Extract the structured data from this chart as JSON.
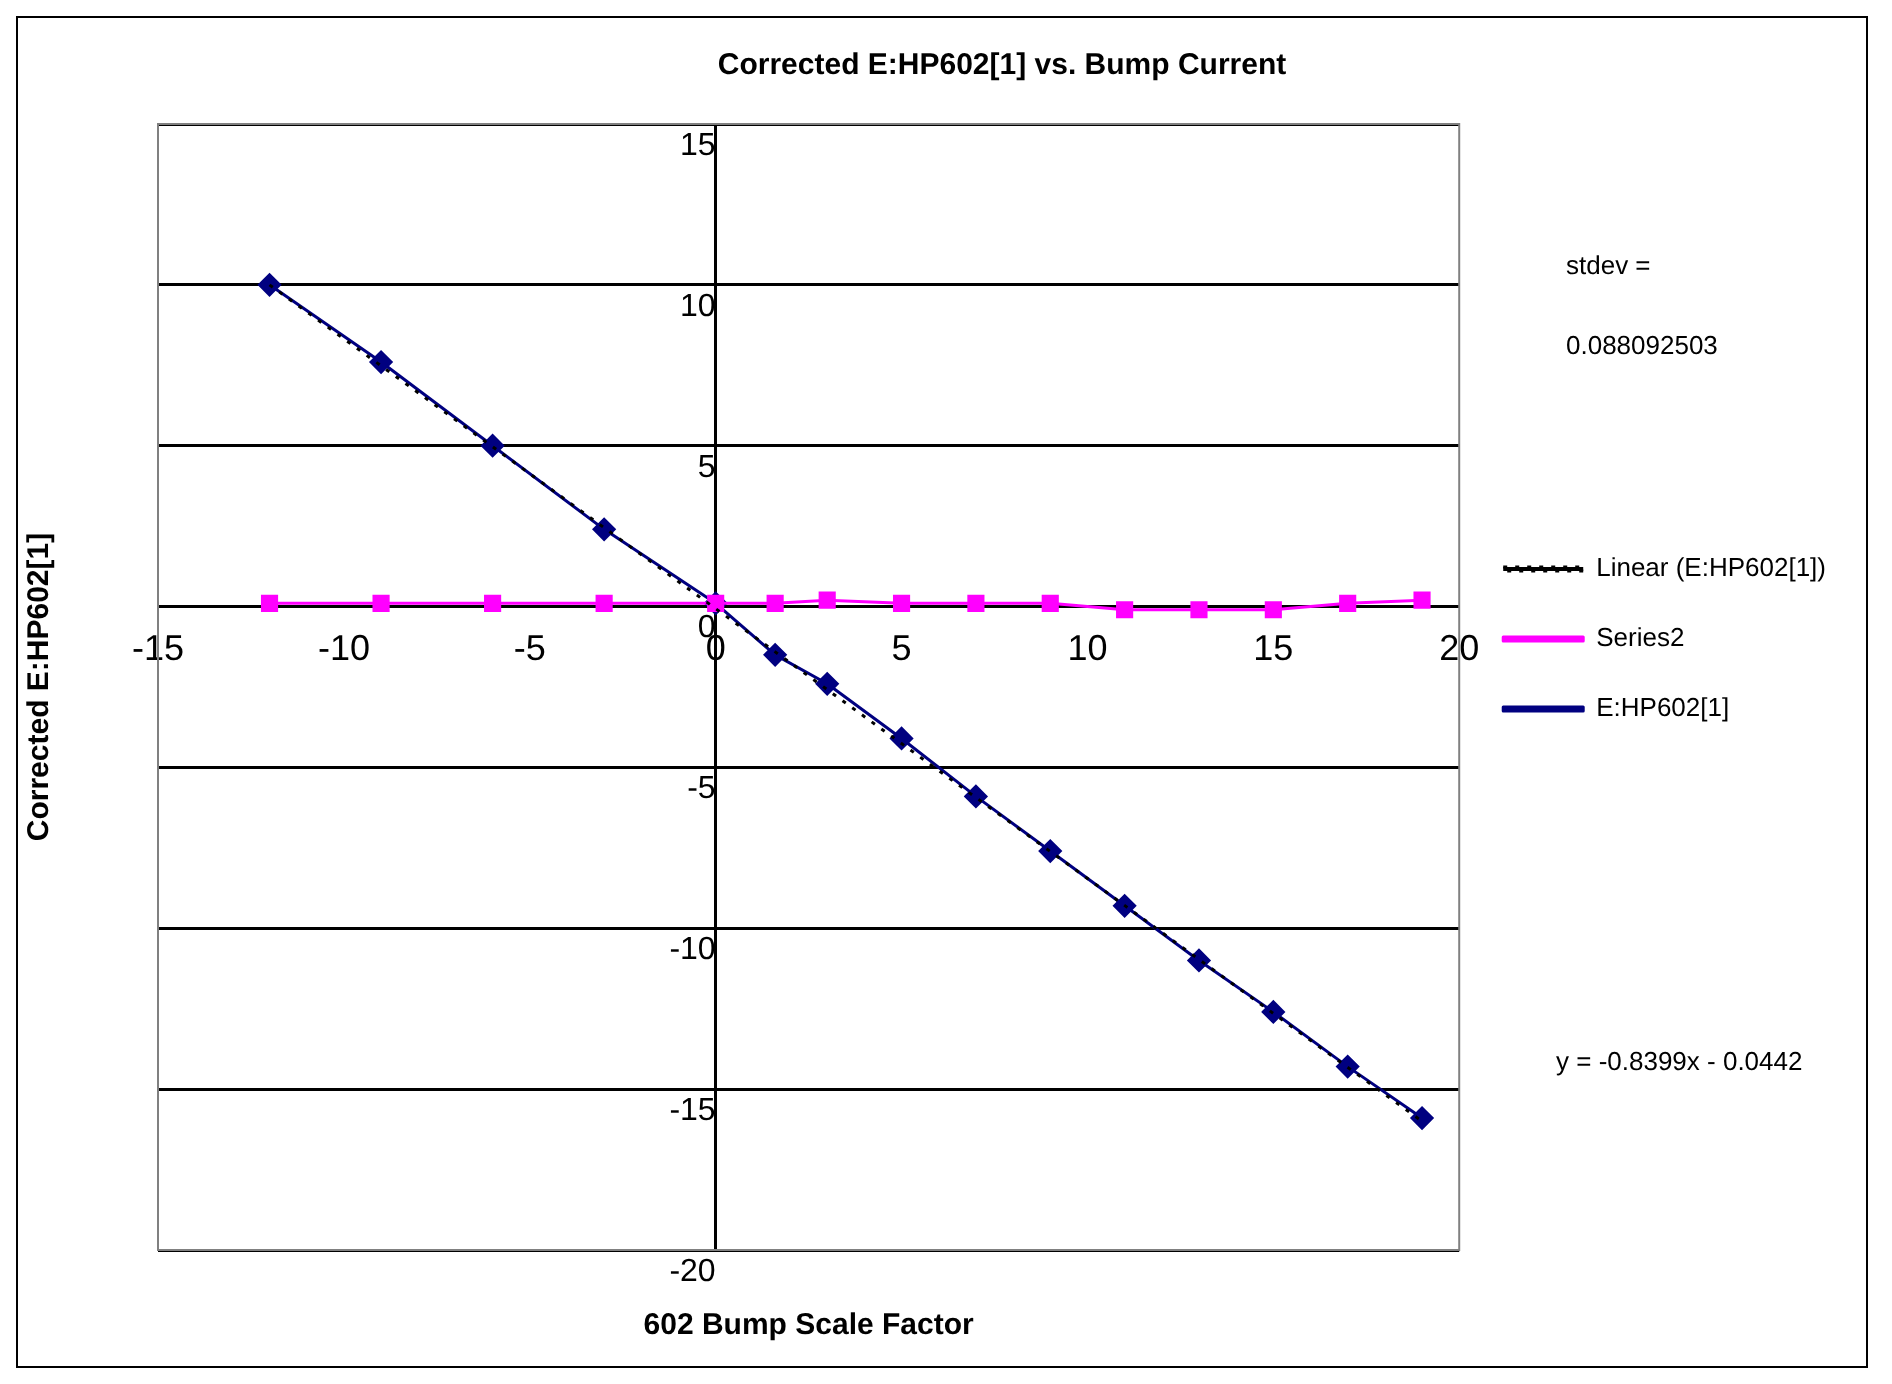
{
  "chart_data": {
    "type": "line",
    "title": "Corrected E:HP602[1] vs. Bump Current",
    "xlabel": "602 Bump Scale Factor",
    "ylabel": "Corrected E:HP602[1]",
    "series": [
      {
        "name": "E:HP602[1]",
        "color": "#000080",
        "marker": "diamond",
        "x": [
          -12,
          -9,
          -6,
          -3,
          0,
          1.6,
          3,
          5,
          7,
          9,
          11,
          13,
          15,
          17,
          19
        ],
        "values": [
          10.0,
          7.6,
          5.0,
          2.4,
          0.1,
          -1.5,
          -2.4,
          -4.1,
          -5.9,
          -7.6,
          -9.3,
          -11.0,
          -12.6,
          -14.3,
          -15.9
        ]
      },
      {
        "name": "Series2",
        "color": "#ff00ff",
        "marker": "square",
        "x": [
          -12,
          -9,
          -6,
          -3,
          0,
          1.6,
          3,
          5,
          7,
          9,
          11,
          13,
          15,
          17,
          19
        ],
        "values": [
          0.1,
          0.1,
          0.1,
          0.1,
          0.1,
          0.1,
          0.2,
          0.1,
          0.1,
          0.1,
          -0.1,
          -0.1,
          -0.1,
          0.1,
          0.2
        ]
      },
      {
        "name": "Linear (E:HP602[1])",
        "color": "#000000",
        "marker": "none",
        "line_style": "dotted",
        "x": [
          -12,
          19
        ],
        "values": [
          10.0,
          -16.0
        ]
      }
    ],
    "xlim": [
      -15,
      20
    ],
    "xticks": [
      -15,
      -10,
      -5,
      0,
      5,
      10,
      15,
      20
    ],
    "ylim": [
      -20,
      15
    ],
    "yticks": [
      -20,
      -15,
      -10,
      -5,
      0,
      5,
      10,
      15
    ],
    "grid": "y",
    "legend": "right",
    "annotations": [
      "stdev =",
      "0.088092503",
      "y = -0.8399x - 0.0442"
    ]
  }
}
